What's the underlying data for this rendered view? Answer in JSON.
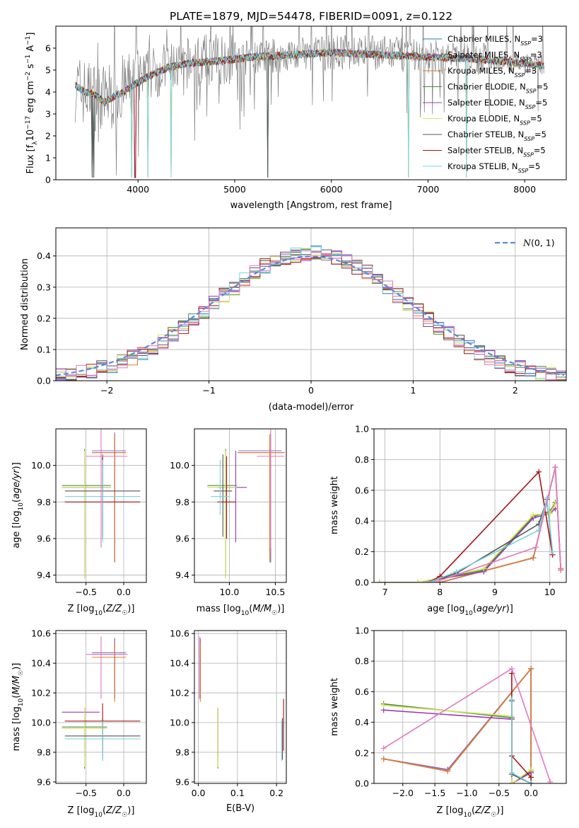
{
  "title": "PLATE=1879, MJD=54478, FIBERID=0091, z=0.122",
  "colors": {
    "Chabrier MILES": "#1f77b4",
    "Salpeter MILES": "#9467bd",
    "Kroupa MILES": "#e07b2a",
    "Chabrier ELODIE": "#4a8c3f",
    "Salpeter ELODIE": "#9b3bb5",
    "Kroupa ELODIE": "#dce35c",
    "Chabrier STELIB": "#555555",
    "Salpeter STELIB": "#a31515",
    "Kroupa STELIB": "#7ad3e0",
    "pink": "#e377c2",
    "normal": "#5b8bd6"
  },
  "chart_data": [
    {
      "id": "spectrum",
      "type": "line",
      "xlabel": "wavelength [Angstrom, rest frame]",
      "ylabel": "Flux [f_λ 10^-17 erg cm^-2 s^-1 A^-1]",
      "xlim": [
        3150,
        8430
      ],
      "ylim": [
        0,
        7
      ],
      "xticks": [
        4000,
        5000,
        6000,
        7000,
        8000
      ],
      "yticks": [
        0,
        1,
        2,
        3,
        4,
        5,
        6
      ],
      "legend_placement": "right",
      "legend": [
        "Chabrier MILES, N_SSP=3",
        "Salpeter MILES, N_SSP=3",
        "Kroupa MILES, N_SSP=3",
        "Chabrier ELODIE, N_SSP=5",
        "Salpeter ELODIE, N_SSP=5",
        "Kroupa ELODIE, N_SSP=5",
        "Chabrier STELIB, N_SSP=5",
        "Salpeter STELIB, N_SSP=5",
        "Kroupa STELIB, N_SSP=5"
      ],
      "data_envelope": {
        "wavelength": [
          3350,
          3500,
          3650,
          3800,
          3950,
          4100,
          4300,
          4500,
          4800,
          5200,
          5600,
          6000,
          6500,
          7000,
          7500,
          8000,
          8200
        ],
        "flux": [
          4.2,
          3.9,
          3.7,
          4.0,
          4.3,
          4.8,
          5.1,
          5.3,
          5.5,
          5.6,
          5.7,
          5.8,
          5.8,
          5.6,
          5.5,
          5.3,
          5.2
        ]
      },
      "model_continuum": {
        "wavelength": [
          3350,
          3450,
          3550,
          3650,
          3750,
          3850,
          3950,
          4100,
          4300,
          4500,
          4800,
          5200,
          5600,
          6000,
          6500,
          7000,
          7500,
          8000,
          8200
        ],
        "flux": [
          4.3,
          4.0,
          3.9,
          3.5,
          3.8,
          4.0,
          4.3,
          4.7,
          5.1,
          5.3,
          5.4,
          5.6,
          5.7,
          5.8,
          5.7,
          5.6,
          5.5,
          5.3,
          5.2
        ]
      }
    },
    {
      "id": "residuals",
      "type": "line",
      "xlabel": "(data-model)/error",
      "ylabel": "Normed distribution",
      "xlim": [
        -2.5,
        2.5
      ],
      "ylim": [
        0,
        0.49
      ],
      "xticks": [
        -2,
        -1,
        0,
        1,
        2
      ],
      "yticks": [
        0.0,
        0.1,
        0.2,
        0.3,
        0.4
      ],
      "legend": [
        "N(0,1)"
      ],
      "legend_placement": "upper right",
      "bin_edges_step": 0.1,
      "histogram_center": [
        0.0,
        0.0
      ],
      "histogram_peak": 0.41,
      "histogram_sigma": 0.95,
      "normal_curve": {
        "mu": 0,
        "sigma": 1
      }
    },
    {
      "id": "age_vs_Z",
      "type": "scatter",
      "xlabel": "Z [log10(Z/Z☉)]",
      "ylabel": "age [log10(age/yr)]",
      "xlim": [
        -0.9,
        0.3
      ],
      "ylim": [
        9.36,
        10.2
      ],
      "xticks": [
        -0.5,
        0.0
      ],
      "yticks": [
        9.4,
        9.6,
        9.8,
        10.0
      ],
      "points": [
        {
          "model": "Chabrier MILES",
          "x": -0.12,
          "xerr": [
            0.3,
            0.15
          ],
          "y": 10.07,
          "yerr": [
            0.6,
            0.1
          ]
        },
        {
          "model": "Salpeter MILES",
          "x": -0.12,
          "xerr": [
            0.3,
            0.15
          ],
          "y": 10.08,
          "yerr": [
            0.6,
            0.1
          ]
        },
        {
          "model": "Kroupa MILES",
          "x": -0.12,
          "xerr": [
            0.3,
            0.15
          ],
          "y": 10.07,
          "yerr": [
            0.6,
            0.1
          ]
        },
        {
          "model": "Chabrier ELODIE",
          "x": -0.52,
          "xerr": [
            0.3,
            0.35
          ],
          "y": 9.89,
          "yerr": [
            0.5,
            0.2
          ]
        },
        {
          "model": "Salpeter ELODIE",
          "x": -0.52,
          "xerr": [
            0.3,
            0.35
          ],
          "y": 9.88,
          "yerr": [
            0.5,
            0.2
          ]
        },
        {
          "model": "Kroupa ELODIE",
          "x": -0.52,
          "xerr": [
            0.3,
            0.35
          ],
          "y": 9.88,
          "yerr": [
            0.5,
            0.2
          ]
        },
        {
          "model": "Chabrier STELIB",
          "x": -0.28,
          "xerr": [
            0.5,
            0.5
          ],
          "y": 9.86,
          "yerr": [
            0.25,
            0.2
          ]
        },
        {
          "model": "Salpeter STELIB",
          "x": -0.28,
          "xerr": [
            0.5,
            0.5
          ],
          "y": 9.8,
          "yerr": [
            0.2,
            0.25
          ]
        },
        {
          "model": "Kroupa STELIB",
          "x": -0.28,
          "xerr": [
            0.5,
            0.5
          ],
          "y": 9.83,
          "yerr": [
            0.25,
            0.2
          ]
        },
        {
          "model": "pink",
          "x": -0.3,
          "xerr": [
            0.2,
            0.35
          ],
          "y": 10.05,
          "yerr": [
            0.5,
            0.15
          ]
        }
      ]
    },
    {
      "id": "age_vs_mass",
      "type": "scatter",
      "xlabel": "mass [log10(M/M☉)]",
      "ylabel": "",
      "xlim": [
        9.62,
        10.62
      ],
      "ylim": [
        9.36,
        10.2
      ],
      "xticks": [
        10.0,
        10.5
      ],
      "yticks": [
        9.4,
        9.6,
        9.8,
        10.0
      ],
      "points": [
        {
          "model": "Chabrier MILES",
          "x": 10.45,
          "xerr": [
            0.35,
            0.15
          ],
          "y": 10.07,
          "yerr": [
            0.6,
            0.1
          ]
        },
        {
          "model": "Salpeter MILES",
          "x": 10.45,
          "xerr": [
            0.35,
            0.12
          ],
          "y": 10.08,
          "yerr": [
            0.6,
            0.1
          ]
        },
        {
          "model": "Kroupa MILES",
          "x": 10.44,
          "xerr": [
            0.35,
            0.15
          ],
          "y": 10.07,
          "yerr": [
            0.6,
            0.1
          ]
        },
        {
          "model": "Chabrier ELODIE",
          "x": 9.96,
          "xerr": [
            0.2,
            0.12
          ],
          "y": 9.89,
          "yerr": [
            0.5,
            0.2
          ]
        },
        {
          "model": "Salpeter ELODIE",
          "x": 10.07,
          "xerr": [
            0.2,
            0.12
          ],
          "y": 9.88,
          "yerr": [
            0.3,
            0.2
          ]
        },
        {
          "model": "Kroupa ELODIE",
          "x": 9.96,
          "xerr": [
            0.2,
            0.12
          ],
          "y": 9.88,
          "yerr": [
            0.5,
            0.2
          ]
        },
        {
          "model": "Chabrier STELIB",
          "x": 9.93,
          "xerr": [
            0.1,
            0.1
          ],
          "y": 9.86,
          "yerr": [
            0.25,
            0.2
          ]
        },
        {
          "model": "Salpeter STELIB",
          "x": 9.97,
          "xerr": [
            0.1,
            0.1
          ],
          "y": 9.8,
          "yerr": [
            0.2,
            0.25
          ]
        },
        {
          "model": "Kroupa STELIB",
          "x": 9.9,
          "xerr": [
            0.1,
            0.1
          ],
          "y": 9.83,
          "yerr": [
            0.1,
            0.2
          ]
        },
        {
          "model": "pink",
          "x": 10.45,
          "xerr": [
            0.15,
            0.15
          ],
          "y": 10.05,
          "yerr": [
            0.5,
            0.15
          ]
        }
      ]
    },
    {
      "id": "mass_weight_vs_age",
      "type": "line",
      "xlabel": "age [log10(age/yr)]",
      "ylabel": "mass weight",
      "xlim": [
        6.8,
        10.3
      ],
      "ylim": [
        0.0,
        1.0
      ],
      "xticks": [
        7,
        8,
        9,
        10
      ],
      "yticks": [
        0.0,
        0.2,
        0.4,
        0.6,
        0.8,
        1.0
      ],
      "series": [
        {
          "model": "Chabrier MILES",
          "x": [
            8.0,
            9.7,
            10.1,
            10.2
          ],
          "y": [
            0.0,
            0.16,
            0.75,
            0.09
          ]
        },
        {
          "model": "Salpeter MILES",
          "x": [
            8.0,
            9.7,
            10.1,
            10.2
          ],
          "y": [
            0.0,
            0.16,
            0.75,
            0.09
          ]
        },
        {
          "model": "Kroupa MILES",
          "x": [
            8.0,
            9.7,
            10.1,
            10.2
          ],
          "y": [
            0.0,
            0.16,
            0.75,
            0.08
          ]
        },
        {
          "model": "Chabrier ELODIE",
          "x": [
            6.9,
            7.6,
            8.8,
            9.7,
            10.0,
            10.1
          ],
          "y": [
            0.0,
            0.0,
            0.08,
            0.43,
            0.46,
            0.52
          ]
        },
        {
          "model": "Salpeter ELODIE",
          "x": [
            6.9,
            7.6,
            8.8,
            9.7,
            10.0,
            10.1
          ],
          "y": [
            0.0,
            0.0,
            0.07,
            0.42,
            0.45,
            0.48
          ]
        },
        {
          "model": "Kroupa ELODIE",
          "x": [
            6.9,
            7.6,
            8.8,
            9.7,
            10.0,
            10.1
          ],
          "y": [
            0.0,
            0.0,
            0.09,
            0.44,
            0.45,
            0.51
          ]
        },
        {
          "model": "Chabrier STELIB",
          "x": [
            7.8,
            8.3,
            9.8,
            9.95,
            10.05
          ],
          "y": [
            0.0,
            0.06,
            0.38,
            0.54,
            0.18
          ]
        },
        {
          "model": "Salpeter STELIB",
          "x": [
            7.8,
            8.0,
            9.8,
            10.05
          ],
          "y": [
            0.0,
            0.04,
            0.72,
            0.18
          ]
        },
        {
          "model": "Kroupa STELIB",
          "x": [
            7.8,
            8.3,
            9.8,
            9.95,
            10.05
          ],
          "y": [
            0.0,
            0.07,
            0.34,
            0.55,
            0.2
          ]
        },
        {
          "model": "pink",
          "x": [
            7.9,
            9.75,
            10.1,
            10.2
          ],
          "y": [
            0.0,
            0.23,
            0.75,
            0.09
          ]
        }
      ]
    },
    {
      "id": "mass_vs_Z",
      "type": "scatter",
      "xlabel": "Z [log10(Z/Z☉)]",
      "ylabel": "mass [log10(M/M☉)]",
      "xlim": [
        -0.9,
        0.3
      ],
      "ylim": [
        9.59,
        10.62
      ],
      "xticks": [
        -0.5,
        0.0
      ],
      "yticks": [
        9.6,
        9.8,
        10.0,
        10.2,
        10.4,
        10.6
      ],
      "points": [
        {
          "model": "Chabrier MILES",
          "x": -0.12,
          "xerr": [
            0.3,
            0.15
          ],
          "y": 10.46,
          "yerr": [
            0.3,
            0.1
          ]
        },
        {
          "model": "Salpeter MILES",
          "x": -0.12,
          "xerr": [
            0.3,
            0.15
          ],
          "y": 10.47,
          "yerr": [
            0.3,
            0.1
          ]
        },
        {
          "model": "Kroupa MILES",
          "x": -0.12,
          "xerr": [
            0.3,
            0.15
          ],
          "y": 10.44,
          "yerr": [
            0.3,
            0.1
          ]
        },
        {
          "model": "Chabrier ELODIE",
          "x": -0.52,
          "xerr": [
            0.3,
            0.3
          ],
          "y": 9.97,
          "yerr": [
            0.28,
            0.13
          ]
        },
        {
          "model": "Salpeter ELODIE",
          "x": -0.52,
          "xerr": [
            0.3,
            0.2
          ],
          "y": 10.07,
          "yerr": [
            0.3,
            0.03
          ]
        },
        {
          "model": "Kroupa ELODIE",
          "x": -0.52,
          "xerr": [
            0.3,
            0.3
          ],
          "y": 9.96,
          "yerr": [
            0.26,
            0.14
          ]
        },
        {
          "model": "Chabrier STELIB",
          "x": -0.28,
          "xerr": [
            0.5,
            0.5
          ],
          "y": 9.91,
          "yerr": [
            0.16,
            0.12
          ]
        },
        {
          "model": "Salpeter STELIB",
          "x": -0.28,
          "xerr": [
            0.5,
            0.5
          ],
          "y": 10.01,
          "yerr": [
            0.2,
            0.12
          ]
        },
        {
          "model": "Kroupa STELIB",
          "x": -0.28,
          "xerr": [
            0.5,
            0.5
          ],
          "y": 9.89,
          "yerr": [
            0.15,
            0.12
          ]
        },
        {
          "model": "pink",
          "x": -0.3,
          "xerr": [
            0.2,
            0.35
          ],
          "y": 10.46,
          "yerr": [
            0.3,
            0.12
          ]
        }
      ]
    },
    {
      "id": "mass_vs_ebv",
      "type": "scatter",
      "xlabel": "E(B-V)",
      "ylabel": "",
      "xlim": [
        -0.01,
        0.225
      ],
      "ylim": [
        9.59,
        10.62
      ],
      "xticks": [
        0.0,
        0.1,
        0.2
      ],
      "yticks": [
        9.6,
        9.8,
        10.0,
        10.2,
        10.4,
        10.6
      ],
      "points": [
        {
          "model": "Chabrier MILES",
          "x": 0.005,
          "y": 10.46,
          "yerr": [
            0.3,
            0.1
          ]
        },
        {
          "model": "Salpeter MILES",
          "x": 0.005,
          "y": 10.47,
          "yerr": [
            0.3,
            0.1
          ]
        },
        {
          "model": "Kroupa MILES",
          "x": 0.005,
          "y": 10.44,
          "yerr": [
            0.3,
            0.1
          ]
        },
        {
          "model": "Chabrier ELODIE",
          "x": 0.05,
          "y": 9.97,
          "yerr": [
            0.28,
            0.13
          ]
        },
        {
          "model": "Salpeter ELODIE",
          "x": 0.05,
          "y": 10.07,
          "yerr": [
            0.3,
            0.03
          ]
        },
        {
          "model": "Kroupa ELODIE",
          "x": 0.05,
          "y": 9.96,
          "yerr": [
            0.26,
            0.14
          ]
        },
        {
          "model": "Chabrier STELIB",
          "x": 0.215,
          "y": 9.91,
          "yerr": [
            0.16,
            0.12
          ]
        },
        {
          "model": "Salpeter STELIB",
          "x": 0.218,
          "y": 10.01,
          "yerr": [
            0.2,
            0.15
          ]
        },
        {
          "model": "Kroupa STELIB",
          "x": 0.213,
          "y": 9.89,
          "yerr": [
            0.15,
            0.12
          ]
        },
        {
          "model": "pink",
          "x": 0.003,
          "y": 10.46,
          "yerr": [
            0.3,
            0.12
          ]
        }
      ]
    },
    {
      "id": "mass_weight_vs_Z",
      "type": "line",
      "xlabel": "Z [log10(Z/Z☉)]",
      "ylabel": "mass weight",
      "xlim": [
        -2.45,
        0.55
      ],
      "ylim": [
        0.0,
        1.0
      ],
      "xticks": [
        -2.0,
        -1.5,
        -1.0,
        -0.5,
        0.0
      ],
      "yticks": [
        0.0,
        0.2,
        0.4,
        0.6,
        0.8,
        1.0
      ],
      "series": [
        {
          "model": "Chabrier MILES",
          "x": [
            -2.3,
            -1.3,
            0.0,
            0.0
          ],
          "y": [
            0.16,
            0.09,
            0.75,
            0.0
          ]
        },
        {
          "model": "Salpeter MILES",
          "x": [
            -2.3,
            -1.3,
            0.0,
            0.0
          ],
          "y": [
            0.16,
            0.09,
            0.75,
            0.0
          ]
        },
        {
          "model": "Kroupa MILES",
          "x": [
            -2.3,
            -1.3,
            0.0,
            0.0
          ],
          "y": [
            0.16,
            0.08,
            0.75,
            0.0
          ]
        },
        {
          "model": "Chabrier ELODIE",
          "x": [
            -2.3,
            -0.3,
            -0.3,
            0.0
          ],
          "y": [
            0.52,
            0.43,
            0.0,
            0.08
          ]
        },
        {
          "model": "Salpeter ELODIE",
          "x": [
            -2.3,
            -0.3,
            -0.3,
            0.0
          ],
          "y": [
            0.48,
            0.42,
            0.0,
            0.07
          ]
        },
        {
          "model": "Kroupa ELODIE",
          "x": [
            -2.3,
            -0.3,
            -0.3,
            0.0
          ],
          "y": [
            0.51,
            0.44,
            0.0,
            0.09
          ]
        },
        {
          "model": "Chabrier STELIB",
          "x": [
            -0.3,
            -0.3,
            0.0
          ],
          "y": [
            0.54,
            0.06,
            0.0
          ]
        },
        {
          "model": "Salpeter STELIB",
          "x": [
            -0.3,
            -0.3,
            0.0
          ],
          "y": [
            0.72,
            0.18,
            0.04
          ]
        },
        {
          "model": "Kroupa STELIB",
          "x": [
            -0.3,
            -0.3,
            0.0
          ],
          "y": [
            0.55,
            0.07,
            0.0
          ]
        },
        {
          "model": "pink",
          "x": [
            -2.3,
            -0.3,
            0.3
          ],
          "y": [
            0.23,
            0.75,
            0.01
          ]
        }
      ]
    }
  ]
}
